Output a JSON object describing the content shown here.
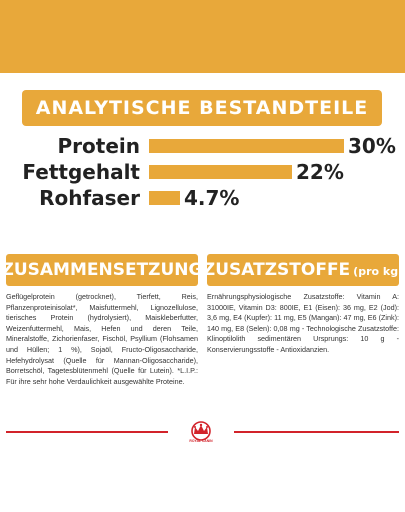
{
  "colors": {
    "accent": "#e8a83a",
    "brand_red": "#d2232a",
    "text": "#222222"
  },
  "header": {
    "title": "ANALYTISCHE BESTANDTEILE"
  },
  "nutrients": [
    {
      "label": "Protein",
      "value": "30%",
      "percent": 30
    },
    {
      "label": "Fettgehalt",
      "value": "22%",
      "percent": 22
    },
    {
      "label": "Rohfaser",
      "value": "4.7%",
      "percent": 4.7
    }
  ],
  "composition": {
    "title": "ZUSAMMENSETZUNG",
    "text": "Geflügelprotein (getrocknet), Tierfett, Reis, Pflanzenproteinisolat*, Maisfuttermehl, Lignozellulose, tierisches Protein (hydrolysiert), Maiskleberfutter, Weizenfuttermehl, Mais, Hefen und deren Teile, Mineralstoffe, Zichorienfaser, Fischöl, Psyllium (Flohsamen und Hüllen; 1 %), Sojaöl, Fructo-Oligosaccharide, Hefehydrolysat (Quelle für Mannan-Oligosaccharide), Borretschöl, Tagetesblütenmehl (Quelle für Lutein). *L.I.P.: Für ihre sehr hohe Verdaulichkeit ausgewählte Proteine."
  },
  "additives": {
    "title": "ZUSATZSTOFFE",
    "unit": "(pro kg)",
    "text": "Ernährungsphysiologische Zusatzstoffe: Vitamin A: 31000IE, Vitamin D3: 800IE, E1 (Eisen): 36 mg, E2 (Jod): 3,6 mg, E4 (Kupfer): 11 mg, E5 (Mangan): 47 mg, E6 (Zink): 140 mg, E8 (Selen): 0,08 mg - Technologische Zusatzstoffe: Klinoptilolith sedimentären Ursprungs: 10 g - Konservierungsstoffe - Antioxidanzien."
  },
  "logo": {
    "icon": "crown-icon",
    "text": "ROYAL CANIN"
  }
}
